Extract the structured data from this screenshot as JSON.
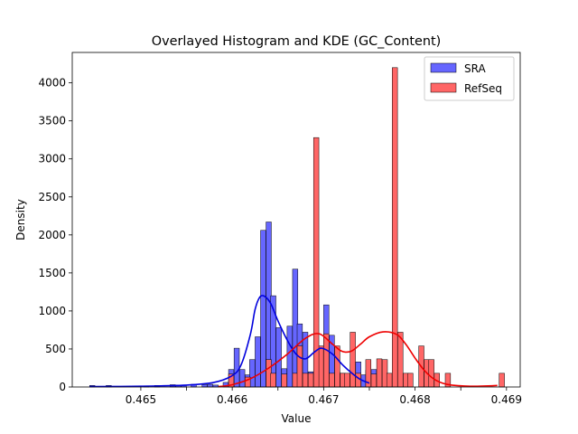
{
  "chart_data": {
    "type": "histogram",
    "title": "Overlayed Histogram and KDE (GC_Content)",
    "xlabel": "Value",
    "ylabel": "Density",
    "xlim": [
      0.46425,
      0.46915
    ],
    "ylim": [
      0,
      4400
    ],
    "x_ticks": [
      0.465,
      0.4655,
      0.466,
      0.4665,
      0.467,
      0.4675,
      0.468,
      0.4685,
      0.469
    ],
    "x_tick_labels": [
      "0.465",
      "",
      "0.466",
      "",
      "0.467",
      "",
      "0.468",
      "",
      "0.469"
    ],
    "y_ticks": [
      0,
      500,
      1000,
      1500,
      2000,
      2500,
      3000,
      3500,
      4000
    ],
    "y_tick_labels": [
      "0",
      "500",
      "1000",
      "1500",
      "2000",
      "2500",
      "3000",
      "3500",
      "4000"
    ],
    "legend_position": "top-right",
    "series": [
      {
        "name": "SRA",
        "color": "#0000ff",
        "bin_width": 5.77e-05,
        "bars": [
          [
            0.46444,
            20
          ],
          [
            0.46462,
            20
          ],
          [
            0.46503,
            15
          ],
          [
            0.46515,
            20
          ],
          [
            0.46532,
            30
          ],
          [
            0.46538,
            25
          ],
          [
            0.46544,
            20
          ],
          [
            0.46555,
            35
          ],
          [
            0.46567,
            30
          ],
          [
            0.46573,
            35
          ],
          [
            0.46579,
            25
          ],
          [
            0.4659,
            60
          ],
          [
            0.46596,
            80
          ],
          [
            0.46596,
            230
          ],
          [
            0.46602,
            510
          ],
          [
            0.46608,
            230
          ],
          [
            0.46614,
            160
          ],
          [
            0.46619,
            360
          ],
          [
            0.46625,
            660
          ],
          [
            0.46631,
            2060
          ],
          [
            0.46637,
            2170
          ],
          [
            0.46642,
            1200
          ],
          [
            0.46648,
            780
          ],
          [
            0.46654,
            240
          ],
          [
            0.4666,
            800
          ],
          [
            0.46666,
            1550
          ],
          [
            0.46671,
            830
          ],
          [
            0.46677,
            720
          ],
          [
            0.46683,
            200
          ],
          [
            0.46689,
            520
          ],
          [
            0.46694,
            520
          ],
          [
            0.467,
            1080
          ],
          [
            0.46706,
            680
          ],
          [
            0.46712,
            200
          ],
          [
            0.46718,
            180
          ],
          [
            0.46723,
            160
          ],
          [
            0.46729,
            300
          ],
          [
            0.46735,
            330
          ],
          [
            0.46741,
            160
          ],
          [
            0.46746,
            220
          ],
          [
            0.46752,
            230
          ]
        ],
        "kde": [
          [
            0.46444,
            5
          ],
          [
            0.465,
            10
          ],
          [
            0.4655,
            25
          ],
          [
            0.4658,
            60
          ],
          [
            0.466,
            150
          ],
          [
            0.4661,
            300
          ],
          [
            0.4662,
            700
          ],
          [
            0.46625,
            1020
          ],
          [
            0.4663,
            1180
          ],
          [
            0.46635,
            1195
          ],
          [
            0.46642,
            1100
          ],
          [
            0.4665,
            870
          ],
          [
            0.4666,
            620
          ],
          [
            0.4667,
            430
          ],
          [
            0.4668,
            370
          ],
          [
            0.4669,
            460
          ],
          [
            0.46698,
            510
          ],
          [
            0.4671,
            430
          ],
          [
            0.4672,
            300
          ],
          [
            0.4673,
            190
          ],
          [
            0.4674,
            100
          ],
          [
            0.4675,
            50
          ]
        ]
      },
      {
        "name": "RefSeq",
        "color": "#ff0000",
        "bin_width": 5.77e-05,
        "bars": [
          [
            0.46596,
            170
          ],
          [
            0.46614,
            130
          ],
          [
            0.46637,
            360
          ],
          [
            0.46642,
            180
          ],
          [
            0.46654,
            170
          ],
          [
            0.46666,
            180
          ],
          [
            0.46671,
            540
          ],
          [
            0.46677,
            180
          ],
          [
            0.46683,
            180
          ],
          [
            0.46689,
            170
          ],
          [
            0.46694,
            540
          ],
          [
            0.46689,
            3280
          ],
          [
            0.467,
            700
          ],
          [
            0.46706,
            180
          ],
          [
            0.46712,
            540
          ],
          [
            0.46718,
            180
          ],
          [
            0.46723,
            180
          ],
          [
            0.46729,
            720
          ],
          [
            0.46735,
            180
          ],
          [
            0.46746,
            360
          ],
          [
            0.46752,
            170
          ],
          [
            0.46758,
            370
          ],
          [
            0.46764,
            360
          ],
          [
            0.46769,
            180
          ],
          [
            0.46775,
            4200
          ],
          [
            0.46781,
            720
          ],
          [
            0.46787,
            180
          ],
          [
            0.46792,
            180
          ],
          [
            0.46804,
            540
          ],
          [
            0.4681,
            360
          ],
          [
            0.46815,
            360
          ],
          [
            0.46821,
            180
          ],
          [
            0.46833,
            180
          ],
          [
            0.46892,
            180
          ]
        ],
        "kde": [
          [
            0.46585,
            5
          ],
          [
            0.466,
            30
          ],
          [
            0.4662,
            110
          ],
          [
            0.4664,
            250
          ],
          [
            0.4666,
            430
          ],
          [
            0.4668,
            640
          ],
          [
            0.46695,
            700
          ],
          [
            0.4671,
            560
          ],
          [
            0.4672,
            470
          ],
          [
            0.4673,
            470
          ],
          [
            0.4674,
            560
          ],
          [
            0.4675,
            660
          ],
          [
            0.46765,
            725
          ],
          [
            0.4678,
            690
          ],
          [
            0.4679,
            560
          ],
          [
            0.468,
            380
          ],
          [
            0.4681,
            220
          ],
          [
            0.4682,
            110
          ],
          [
            0.4683,
            50
          ],
          [
            0.4684,
            25
          ],
          [
            0.4686,
            10
          ],
          [
            0.4688,
            15
          ],
          [
            0.4689,
            20
          ]
        ]
      }
    ]
  }
}
